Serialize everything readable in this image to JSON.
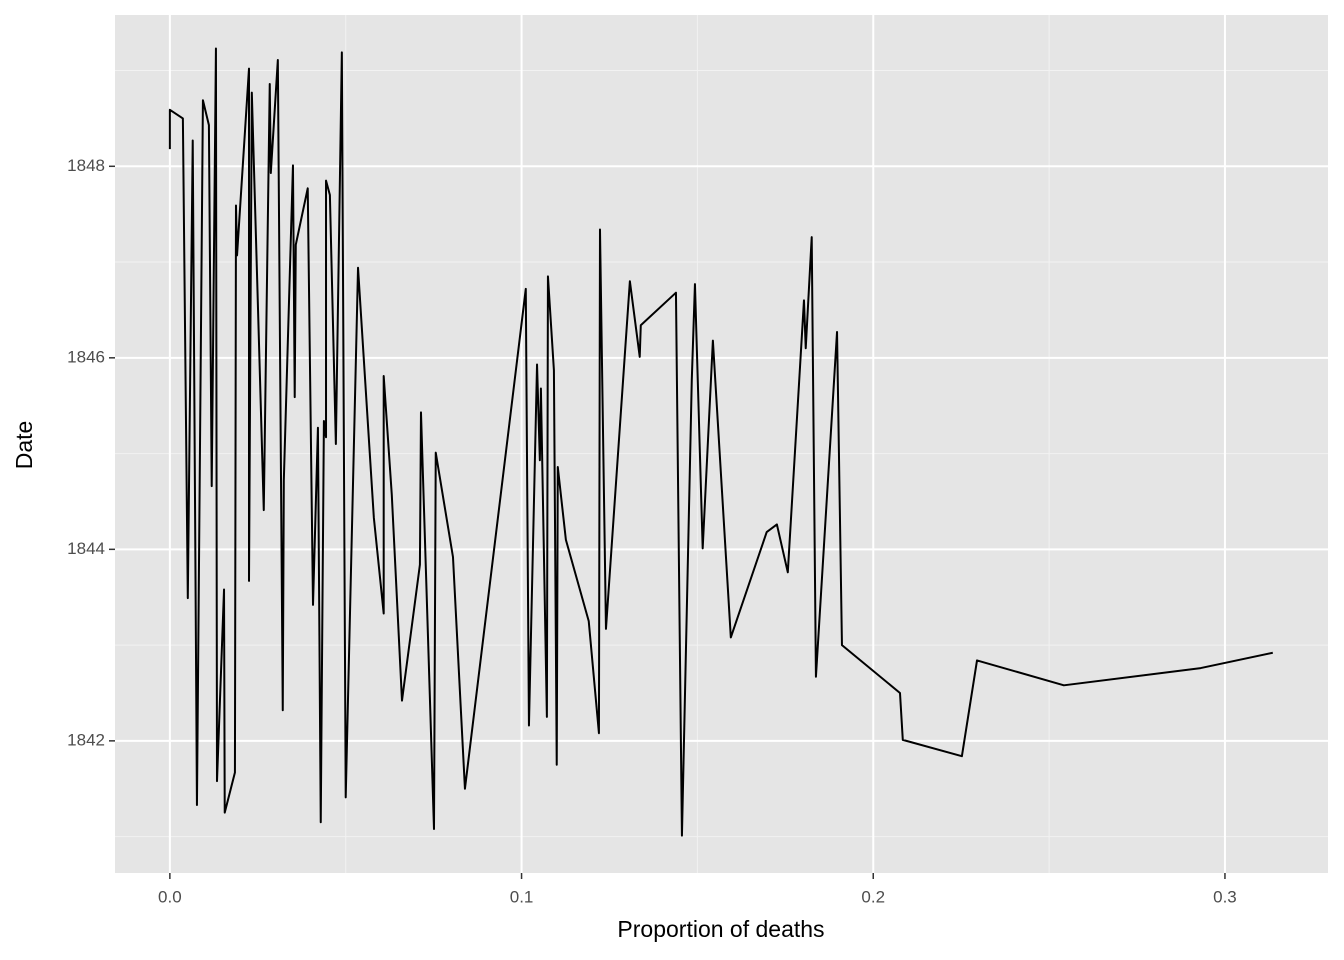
{
  "chart_data": {
    "type": "line",
    "x_label": "Proportion of deaths",
    "y_label": "Date",
    "x": [
      0,
      0,
      0.0037,
      0.0051,
      0.0065,
      0.0077,
      0.0094,
      0.0111,
      0.0119,
      0.0131,
      0.0134,
      0.0154,
      0.0156,
      0.0185,
      0.0188,
      0.0191,
      0.0225,
      0.0225,
      0.0233,
      0.0267,
      0.0284,
      0.0287,
      0.0307,
      0.0321,
      0.0324,
      0.035,
      0.0355,
      0.0358,
      0.0392,
      0.0407,
      0.0421,
      0.0429,
      0.0438,
      0.0444,
      0.0444,
      0.0455,
      0.0472,
      0.0489,
      0.05,
      0.0535,
      0.058,
      0.0608,
      0.0608,
      0.0631,
      0.066,
      0.0711,
      0.0714,
      0.0751,
      0.0756,
      0.0805,
      0.0839,
      0.1012,
      0.1021,
      0.1044,
      0.1052,
      0.1055,
      0.1072,
      0.1075,
      0.1092,
      0.11,
      0.1103,
      0.1126,
      0.1191,
      0.122,
      0.1223,
      0.124,
      0.1308,
      0.1336,
      0.1339,
      0.1439,
      0.1456,
      0.1484,
      0.1493,
      0.1515,
      0.1544,
      0.1595,
      0.1697,
      0.1726,
      0.1757,
      0.1803,
      0.1808,
      0.1825,
      0.1837,
      0.1897,
      0.1911,
      0.2076,
      0.2084,
      0.2252,
      0.2295,
      0.2542,
      0.2931,
      0.3136
    ],
    "values": [
      1848.18,
      1848.59,
      1848.5,
      1843.49,
      1848.27,
      1841.33,
      1848.69,
      1848.43,
      1844.66,
      1849.23,
      1841.58,
      1843.58,
      1841.25,
      1841.67,
      1847.59,
      1847.07,
      1849.02,
      1843.67,
      1848.77,
      1844.41,
      1848.86,
      1847.93,
      1849.11,
      1842.32,
      1844.72,
      1848.01,
      1845.59,
      1847.18,
      1847.77,
      1843.42,
      1845.27,
      1841.15,
      1845.34,
      1845.17,
      1847.85,
      1847.7,
      1845.1,
      1849.19,
      1841.41,
      1846.94,
      1844.33,
      1843.33,
      1845.81,
      1844.57,
      1842.42,
      1843.84,
      1845.43,
      1841.08,
      1845.01,
      1843.92,
      1841.5,
      1846.72,
      1842.16,
      1845.93,
      1844.93,
      1845.68,
      1842.25,
      1846.85,
      1845.87,
      1841.75,
      1844.86,
      1844.1,
      1843.25,
      1842.08,
      1847.34,
      1843.17,
      1846.8,
      1846.01,
      1846.34,
      1846.68,
      1841.01,
      1845.77,
      1846.77,
      1844.01,
      1846.18,
      1843.08,
      1844.18,
      1844.26,
      1843.76,
      1846.6,
      1846.1,
      1847.26,
      1842.67,
      1846.27,
      1843,
      1842.5,
      1842.01,
      1841.84,
      1842.84,
      1842.58,
      1842.76,
      1842.92
    ],
    "color": "#000000",
    "xlim": [
      -0.0156,
      0.3293
    ],
    "ylim": [
      1840.62,
      1849.58
    ],
    "xticks": [
      {
        "value": 0,
        "label": "0.0"
      },
      0.1,
      0.2,
      0.3
    ],
    "yticks": [
      1842,
      1844,
      1846,
      1848
    ],
    "x_minor_grid": [
      0.05,
      0.15,
      0.25
    ],
    "y_minor_grid": [
      1841,
      1843,
      1845,
      1847,
      1849
    ],
    "grid": true
  }
}
